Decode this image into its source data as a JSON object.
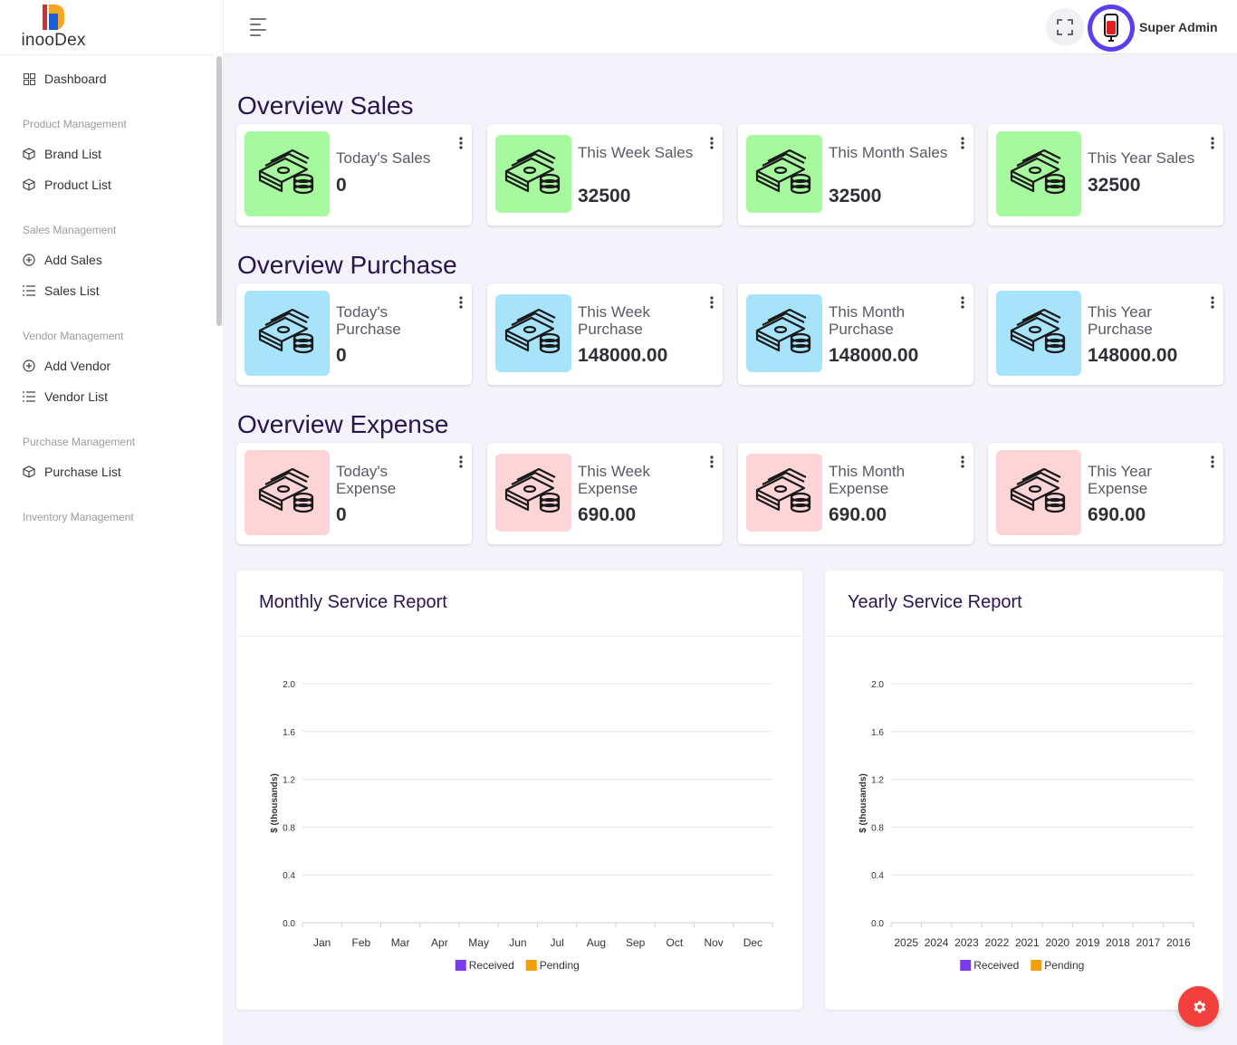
{
  "brand": {
    "name": "inooDex"
  },
  "sidebar": {
    "dashboard": {
      "label": "Dashboard",
      "icon": "grid-icon"
    },
    "sections": [
      {
        "title": "Product Management",
        "items": [
          {
            "label": "Brand List",
            "icon": "box-icon"
          },
          {
            "label": "Product List",
            "icon": "box-icon"
          }
        ]
      },
      {
        "title": "Sales Management",
        "items": [
          {
            "label": "Add Sales",
            "icon": "plus-circle-icon"
          },
          {
            "label": "Sales List",
            "icon": "list-icon"
          }
        ]
      },
      {
        "title": "Vendor Management",
        "items": [
          {
            "label": "Add Vendor",
            "icon": "plus-circle-icon"
          },
          {
            "label": "Vendor List",
            "icon": "list-icon"
          }
        ]
      },
      {
        "title": "Purchase Management",
        "items": [
          {
            "label": "Purchase List",
            "icon": "box-icon"
          }
        ]
      },
      {
        "title": "Inventory Management",
        "items": []
      }
    ]
  },
  "topbar": {
    "user_name": "Super Admin"
  },
  "overview": {
    "sales": {
      "title": "Overview Sales",
      "color": "#a6f99e",
      "cards": [
        {
          "label": "Today's Sales",
          "value": "0"
        },
        {
          "label": "This Week Sales",
          "value": "32500"
        },
        {
          "label": "This Month Sales",
          "value": "32500"
        },
        {
          "label": "This Year Sales",
          "value": "32500"
        }
      ]
    },
    "purchase": {
      "title": "Overview Purchase",
      "color": "#a7e3fb",
      "cards": [
        {
          "label": "Today's Purchase",
          "value": "0"
        },
        {
          "label": "This Week Purchase",
          "value": "148000.00"
        },
        {
          "label": "This Month Purchase",
          "value": "148000.00"
        },
        {
          "label": "This Year Purchase",
          "value": "148000.00"
        }
      ]
    },
    "expense": {
      "title": "Overview Expense",
      "color": "#fdd5d7",
      "cards": [
        {
          "label": "Today's Expense",
          "value": "0"
        },
        {
          "label": "This Week Expense",
          "value": "690.00"
        },
        {
          "label": "This Month Expense",
          "value": "690.00"
        },
        {
          "label": "This Year Expense",
          "value": "690.00"
        }
      ]
    }
  },
  "chart_data": [
    {
      "type": "bar",
      "title": "Monthly Service Report",
      "ylabel": "$ (thousands)",
      "xlabel": "",
      "ylim": [
        0,
        2.0
      ],
      "yticks": [
        "0.0",
        "0.4",
        "0.8",
        "1.2",
        "1.6",
        "2.0"
      ],
      "categories": [
        "Jan",
        "Feb",
        "Mar",
        "Apr",
        "May",
        "Jun",
        "Jul",
        "Aug",
        "Sep",
        "Oct",
        "Nov",
        "Dec"
      ],
      "series": [
        {
          "name": "Received",
          "color": "#7c3aed",
          "values": [
            0,
            0,
            0,
            0,
            0,
            0,
            0,
            0,
            0,
            0,
            0,
            0
          ]
        },
        {
          "name": "Pending",
          "color": "#f59e0b",
          "values": [
            0,
            0,
            0,
            0,
            0,
            0,
            0,
            0,
            0,
            0,
            0,
            0
          ]
        }
      ],
      "grid": true,
      "legend": "bottom"
    },
    {
      "type": "bar",
      "title": "Yearly Service Report",
      "ylabel": "$ (thousands)",
      "xlabel": "",
      "ylim": [
        0,
        2.0
      ],
      "yticks": [
        "0.0",
        "0.4",
        "0.8",
        "1.2",
        "1.6",
        "2.0"
      ],
      "categories": [
        "2025",
        "2024",
        "2023",
        "2022",
        "2021",
        "2020",
        "2019",
        "2018",
        "2017",
        "2016"
      ],
      "series": [
        {
          "name": "Received",
          "color": "#7c3aed",
          "values": [
            0,
            0,
            0,
            0,
            0,
            0,
            0,
            0,
            0,
            0
          ]
        },
        {
          "name": "Pending",
          "color": "#f59e0b",
          "values": [
            0,
            0,
            0,
            0,
            0,
            0,
            0,
            0,
            0,
            0
          ]
        }
      ],
      "grid": true,
      "legend": "bottom"
    }
  ]
}
